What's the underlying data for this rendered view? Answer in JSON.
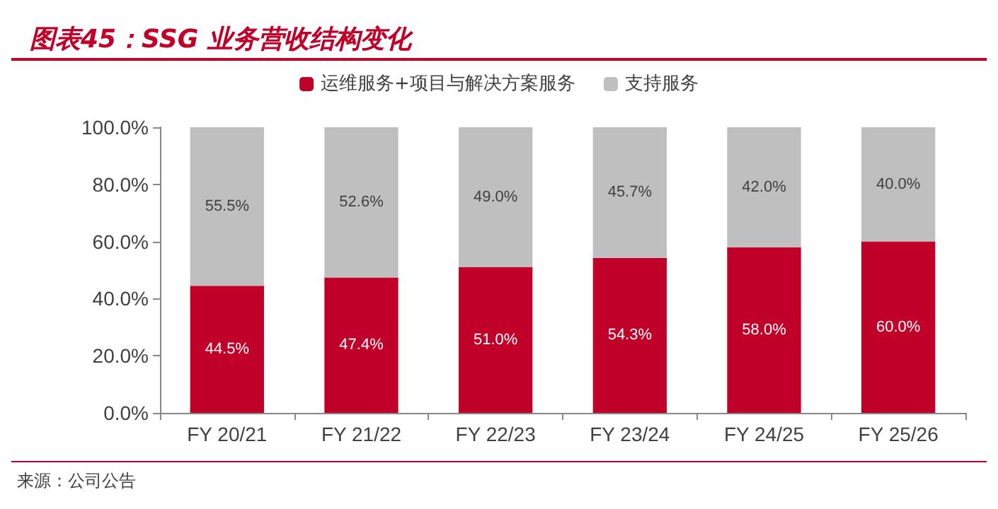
{
  "chart_data": {
    "type": "bar",
    "title": "图表45：SSG 业务营收结构变化",
    "stacked": true,
    "legend": "top",
    "grid": false,
    "categories": [
      "FY 20/21",
      "FY 21/22",
      "FY 22/23",
      "FY 23/24",
      "FY 24/25",
      "FY 25/26"
    ],
    "series": [
      {
        "name": "运维服务+项目与解决方案服务",
        "color": "#c00028",
        "values": [
          44.5,
          47.4,
          51.0,
          54.3,
          58.0,
          60.0
        ],
        "value_labels": [
          "44.5%",
          "47.4%",
          "51.0%",
          "54.3%",
          "58.0%",
          "60.0%"
        ]
      },
      {
        "name": "支持服务",
        "color": "#bfbfbf",
        "values": [
          55.5,
          52.6,
          49.0,
          45.7,
          42.0,
          40.0
        ],
        "value_labels": [
          "55.5%",
          "52.6%",
          "49.0%",
          "45.7%",
          "42.0%",
          "40.0%"
        ]
      }
    ],
    "ylim": [
      0,
      100
    ],
    "yticks": [
      {
        "value": 0,
        "label": "0.0%"
      },
      {
        "value": 20,
        "label": "20.0%"
      },
      {
        "value": 40,
        "label": "40.0%"
      },
      {
        "value": 60,
        "label": "60.0%"
      },
      {
        "value": 80,
        "label": "80.0%"
      },
      {
        "value": 100,
        "label": "100.0%"
      }
    ],
    "annotations": [
      "来源：公司公告"
    ]
  }
}
